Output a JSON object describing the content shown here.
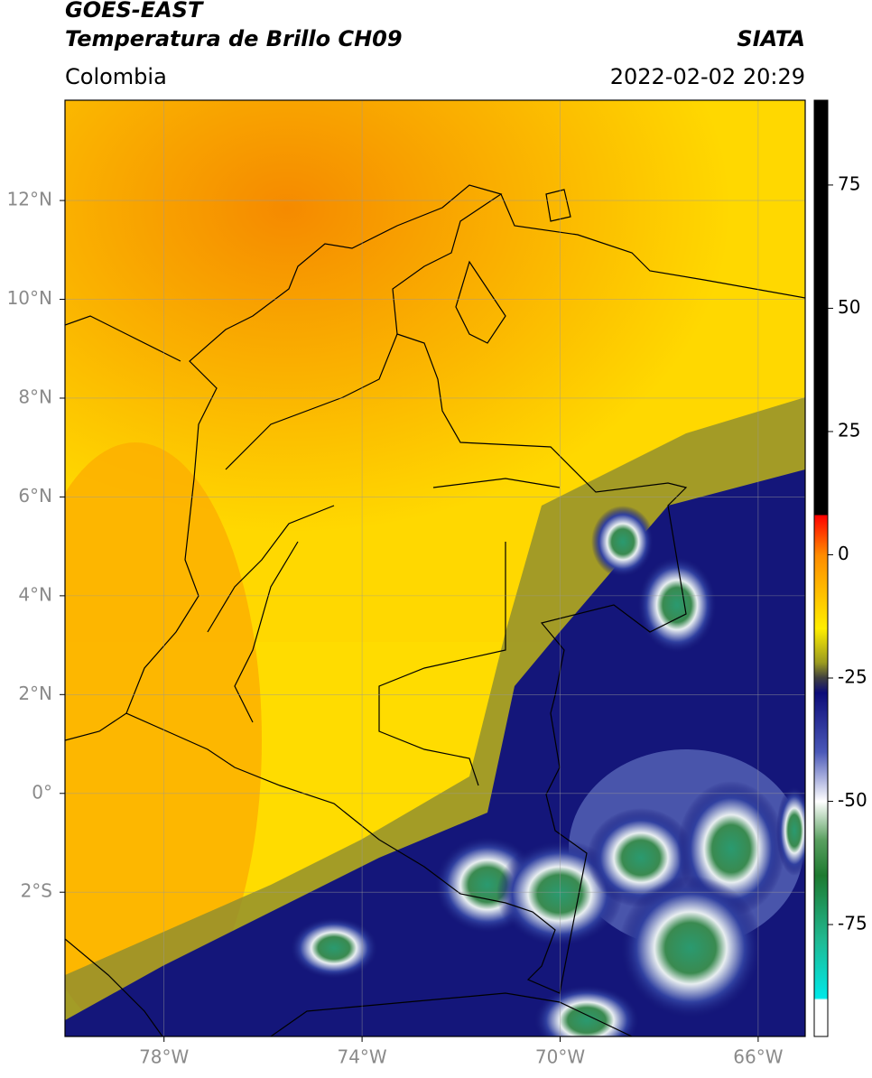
{
  "header": {
    "title": "GOES-EAST",
    "subtitle": "Temperatura de Brillo CH09",
    "region": "Colombia",
    "source": "SIATA",
    "datetime": "2022-02-02 20:29"
  },
  "map": {
    "xlim": [
      -80,
      -65.05
    ],
    "ylim": [
      -4.92,
      14.03
    ],
    "lon_ticks": [
      {
        "value": -78,
        "label": "78°W"
      },
      {
        "value": -74,
        "label": "74°W"
      },
      {
        "value": -70,
        "label": "70°W"
      },
      {
        "value": -66,
        "label": "66°W"
      }
    ],
    "lat_ticks": [
      {
        "value": 12,
        "label": "12°N"
      },
      {
        "value": 10,
        "label": "10°N"
      },
      {
        "value": 8,
        "label": "8°N"
      },
      {
        "value": 6,
        "label": "6°N"
      },
      {
        "value": 4,
        "label": "4°N"
      },
      {
        "value": 2,
        "label": "2°N"
      },
      {
        "value": 0,
        "label": "0°"
      },
      {
        "value": -2,
        "label": "2°S"
      }
    ]
  },
  "colorbar": {
    "lim": [
      -97.7,
      92.2
    ],
    "ticks": [
      75,
      50,
      25,
      0,
      -25,
      -50,
      -75
    ]
  }
}
